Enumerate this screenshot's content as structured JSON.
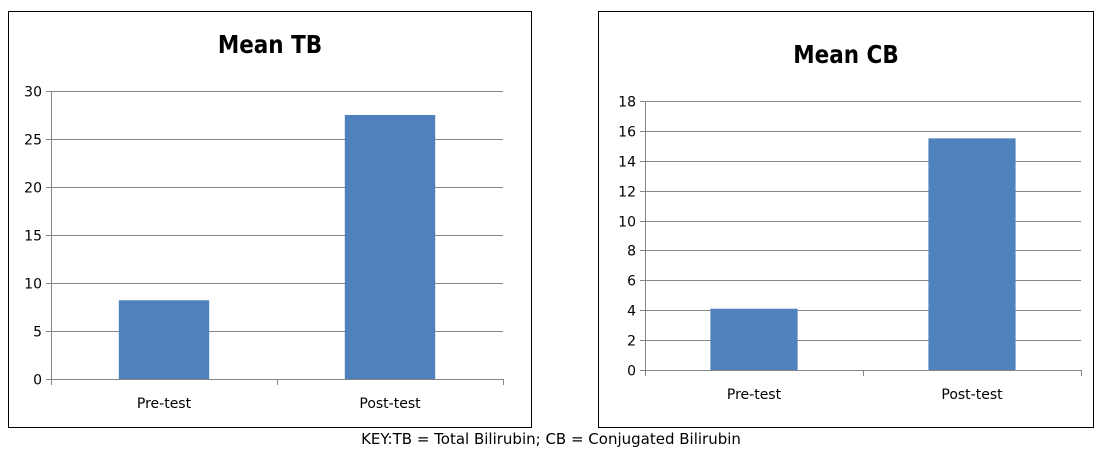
{
  "chart_data": [
    {
      "type": "bar",
      "title": "Mean TB",
      "categories": [
        "Pre-test",
        "Post-test"
      ],
      "values": [
        8.2,
        27.5
      ],
      "ylim": [
        0,
        30
      ],
      "yticks": [
        0,
        5,
        10,
        15,
        20,
        25,
        30
      ],
      "grid": true,
      "bar_color": "#4F81BD"
    },
    {
      "type": "bar",
      "title": "Mean CB",
      "categories": [
        "Pre-test",
        "Post-test"
      ],
      "values": [
        4.1,
        15.5
      ],
      "ylim": [
        0,
        18
      ],
      "yticks": [
        0,
        2,
        4,
        6,
        8,
        10,
        12,
        14,
        16,
        18
      ],
      "grid": true,
      "bar_color": "#4F81BD"
    }
  ],
  "caption": "KEY:TB = Total Bilirubin; CB = Conjugated Bilirubin"
}
